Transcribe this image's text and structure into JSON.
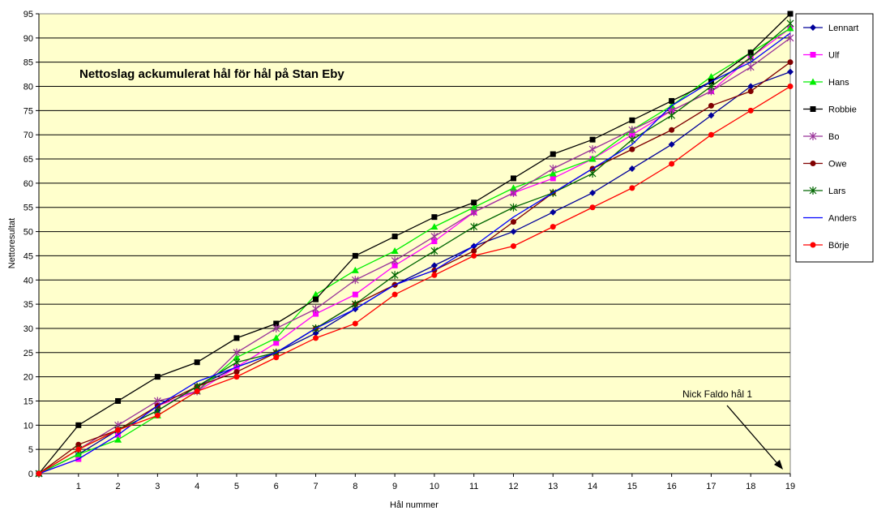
{
  "chart_data": {
    "type": "line",
    "title": "Nettoslag ackumulerat hål för hål på Stan Eby",
    "xlabel": "Hål nummer",
    "ylabel": "Nettoresultat",
    "x": [
      0,
      1,
      2,
      3,
      4,
      5,
      6,
      7,
      8,
      9,
      10,
      11,
      12,
      13,
      14,
      15,
      16,
      17,
      18,
      19
    ],
    "x_tick_labels": [
      "1",
      "2",
      "3",
      "4",
      "5",
      "6",
      "7",
      "8",
      "9",
      "10",
      "11",
      "12",
      "13",
      "14",
      "15",
      "16",
      "17",
      "18",
      "19"
    ],
    "ylim": [
      0,
      95
    ],
    "y_ticks": [
      0,
      5,
      10,
      15,
      20,
      25,
      30,
      35,
      40,
      45,
      50,
      55,
      60,
      65,
      70,
      75,
      80,
      85,
      90,
      95
    ],
    "grid": "horizontal",
    "plot_background": "#ffffcc",
    "legend_position": "right",
    "series": [
      {
        "name": "Lennart",
        "color": "#000099",
        "marker": "diamond",
        "values": [
          0,
          4,
          9,
          13,
          18,
          22,
          25,
          29,
          34,
          39,
          43,
          47,
          50,
          54,
          58,
          63,
          68,
          74,
          80,
          83
        ]
      },
      {
        "name": "Ulf",
        "color": "#ff00ff",
        "marker": "square",
        "values": [
          0,
          3,
          8,
          14,
          17,
          22,
          27,
          33,
          37,
          43,
          48,
          54,
          58,
          61,
          65,
          70,
          75,
          79,
          86,
          92
        ]
      },
      {
        "name": "Hans",
        "color": "#00ee00",
        "marker": "triangle",
        "values": [
          0,
          4,
          7,
          12,
          17,
          24,
          28,
          37,
          42,
          46,
          51,
          55,
          59,
          62,
          65,
          71,
          76,
          82,
          87,
          92
        ]
      },
      {
        "name": "Robbie",
        "color": "#000000",
        "marker": "square",
        "values": [
          0,
          10,
          15,
          20,
          23,
          28,
          31,
          36,
          45,
          49,
          53,
          56,
          61,
          66,
          69,
          73,
          77,
          81,
          87,
          95
        ]
      },
      {
        "name": "Bo",
        "color": "#993399",
        "marker": "star",
        "values": [
          0,
          5,
          10,
          15,
          17,
          25,
          30,
          34,
          40,
          44,
          49,
          54,
          58,
          63,
          67,
          71,
          75,
          79,
          84,
          90
        ]
      },
      {
        "name": "Owe",
        "color": "#800000",
        "marker": "circle",
        "values": [
          0,
          6,
          9,
          14,
          18,
          21,
          25,
          30,
          35,
          39,
          42,
          46,
          52,
          58,
          63,
          67,
          71,
          76,
          79,
          85
        ]
      },
      {
        "name": "Lars",
        "color": "#006600",
        "marker": "star",
        "values": [
          0,
          5,
          9,
          13,
          18,
          23,
          25,
          30,
          35,
          41,
          46,
          51,
          55,
          58,
          62,
          69,
          74,
          80,
          86,
          93
        ]
      },
      {
        "name": "Anders",
        "color": "#0000ff",
        "marker": "none",
        "values": [
          0,
          3,
          8,
          14,
          19,
          22,
          25,
          30,
          34,
          39,
          42,
          47,
          53,
          58,
          63,
          68,
          76,
          81,
          85,
          91
        ]
      },
      {
        "name": "Börje",
        "color": "#ff0000",
        "marker": "circle",
        "values": [
          0,
          5,
          9,
          12,
          17,
          20,
          24,
          28,
          31,
          37,
          41,
          45,
          47,
          51,
          55,
          59,
          64,
          70,
          75,
          80
        ]
      }
    ],
    "annotation": {
      "text": "Nick Faldo hål 1",
      "points_to_x": 19,
      "points_to_y": 1
    }
  }
}
